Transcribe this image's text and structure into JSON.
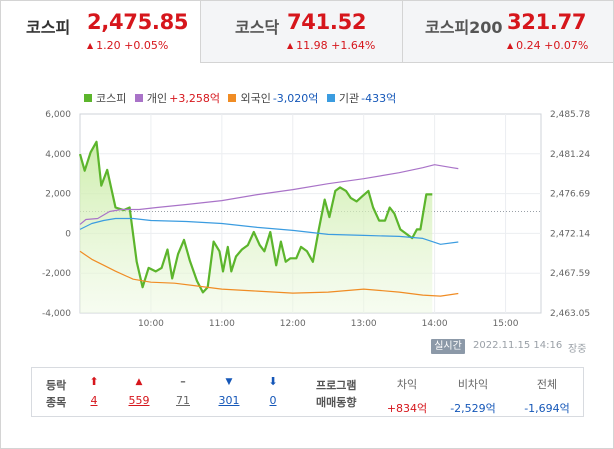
{
  "tabs": [
    {
      "name": "코스피",
      "price": "2,475.85",
      "change": "1.20 +0.05%",
      "active": true
    },
    {
      "name": "코스닥",
      "price": "741.52",
      "change": "11.98 +1.64%",
      "active": false
    },
    {
      "name": "코스피200",
      "price": "321.77",
      "change": "0.24 +0.07%",
      "active": false
    }
  ],
  "legend": [
    {
      "name": "코스피",
      "value": "",
      "color": "#5cb52c"
    },
    {
      "name": "개인",
      "value": "+3,258억",
      "color": "#a973c8",
      "value_color": "#d6161c"
    },
    {
      "name": "외국인",
      "value": "-3,020억",
      "color": "#f08c24",
      "value_color": "#1557b8"
    },
    {
      "name": "기관",
      "value": "-433억",
      "color": "#3b9ce0",
      "value_color": "#1557b8"
    }
  ],
  "chart_data": {
    "type": "line",
    "x_axis": {
      "ticks": [
        "10:00",
        "11:00",
        "12:00",
        "13:00",
        "14:00",
        "15:00"
      ],
      "range": [
        "09:00",
        "15:30"
      ]
    },
    "y_left": {
      "ticks": [
        "6,000",
        "4,000",
        "2,000",
        "0",
        "-2,000",
        "-4,000"
      ],
      "range": [
        -4000,
        6000
      ],
      "label": ""
    },
    "y_right": {
      "ticks": [
        "2,485.78",
        "2,481.24",
        "2,476.69",
        "2,472.14",
        "2,467.59",
        "2,463.05"
      ],
      "range": [
        2463.05,
        2485.78
      ]
    },
    "reference_line": {
      "axis": "right",
      "value": 2474.65,
      "style": "dotted"
    },
    "grid": true,
    "series": [
      {
        "name": "코스피",
        "axis": "right",
        "color": "#5cb52c",
        "fill": true,
        "points": [
          [
            "09:00",
            2481.2
          ],
          [
            "09:04",
            2479.3
          ],
          [
            "09:09",
            2481.4
          ],
          [
            "09:14",
            2482.6
          ],
          [
            "09:18",
            2477.6
          ],
          [
            "09:23",
            2479.4
          ],
          [
            "09:30",
            2475.1
          ],
          [
            "09:37",
            2474.8
          ],
          [
            "09:42",
            2475.1
          ],
          [
            "09:48",
            2468.9
          ],
          [
            "09:53",
            2466.0
          ],
          [
            "09:58",
            2468.2
          ],
          [
            "10:04",
            2467.8
          ],
          [
            "10:09",
            2468.2
          ],
          [
            "10:14",
            2470.3
          ],
          [
            "10:18",
            2467.0
          ],
          [
            "10:23",
            2469.8
          ],
          [
            "10:28",
            2471.4
          ],
          [
            "10:33",
            2469.0
          ],
          [
            "10:39",
            2466.7
          ],
          [
            "10:44",
            2465.4
          ],
          [
            "10:48",
            2466.0
          ],
          [
            "10:53",
            2471.2
          ],
          [
            "10:58",
            2470.1
          ],
          [
            "11:01",
            2467.8
          ],
          [
            "11:05",
            2470.6
          ],
          [
            "11:08",
            2467.8
          ],
          [
            "11:12",
            2469.5
          ],
          [
            "11:17",
            2470.3
          ],
          [
            "11:22",
            2470.8
          ],
          [
            "11:27",
            2472.3
          ],
          [
            "11:32",
            2470.8
          ],
          [
            "11:36",
            2470.1
          ],
          [
            "11:41",
            2472.3
          ],
          [
            "11:46",
            2468.5
          ],
          [
            "11:50",
            2471.2
          ],
          [
            "11:54",
            2468.9
          ],
          [
            "11:58",
            2469.3
          ],
          [
            "12:03",
            2469.3
          ],
          [
            "12:07",
            2470.6
          ],
          [
            "12:12",
            2470.1
          ],
          [
            "12:17",
            2468.9
          ],
          [
            "12:22",
            2472.6
          ],
          [
            "12:27",
            2476.0
          ],
          [
            "12:31",
            2474.0
          ],
          [
            "12:36",
            2477.0
          ],
          [
            "12:40",
            2477.4
          ],
          [
            "12:45",
            2477.0
          ],
          [
            "12:49",
            2476.2
          ],
          [
            "12:54",
            2475.8
          ],
          [
            "12:59",
            2476.4
          ],
          [
            "13:04",
            2477.0
          ],
          [
            "13:08",
            2475.1
          ],
          [
            "13:13",
            2473.6
          ],
          [
            "13:18",
            2473.6
          ],
          [
            "13:22",
            2475.1
          ],
          [
            "13:26",
            2474.4
          ],
          [
            "13:31",
            2472.6
          ],
          [
            "13:36",
            2472.1
          ],
          [
            "13:41",
            2471.6
          ],
          [
            "13:45",
            2472.6
          ],
          [
            "13:48",
            2472.6
          ],
          [
            "13:53",
            2476.6
          ],
          [
            "13:58",
            2476.6
          ]
        ]
      },
      {
        "name": "개인",
        "axis": "left",
        "color": "#a973c8",
        "fill": false,
        "points": [
          [
            "09:00",
            450
          ],
          [
            "09:05",
            700
          ],
          [
            "09:15",
            750
          ],
          [
            "09:25",
            1100
          ],
          [
            "09:35",
            1200
          ],
          [
            "09:50",
            1200
          ],
          [
            "10:05",
            1300
          ],
          [
            "10:30",
            1450
          ],
          [
            "11:00",
            1650
          ],
          [
            "11:30",
            1950
          ],
          [
            "12:00",
            2200
          ],
          [
            "12:30",
            2500
          ],
          [
            "13:00",
            2750
          ],
          [
            "13:30",
            3050
          ],
          [
            "13:50",
            3300
          ],
          [
            "14:00",
            3450
          ],
          [
            "14:15",
            3300
          ],
          [
            "14:20",
            3258
          ]
        ]
      },
      {
        "name": "외국인",
        "axis": "left",
        "color": "#f08c24",
        "fill": false,
        "points": [
          [
            "09:00",
            -900
          ],
          [
            "09:10",
            -1300
          ],
          [
            "09:20",
            -1600
          ],
          [
            "09:30",
            -1900
          ],
          [
            "09:45",
            -2300
          ],
          [
            "10:00",
            -2450
          ],
          [
            "10:20",
            -2500
          ],
          [
            "10:40",
            -2650
          ],
          [
            "11:00",
            -2800
          ],
          [
            "11:30",
            -2900
          ],
          [
            "12:00",
            -3000
          ],
          [
            "12:30",
            -2950
          ],
          [
            "13:00",
            -2800
          ],
          [
            "13:30",
            -2950
          ],
          [
            "13:50",
            -3100
          ],
          [
            "14:05",
            -3150
          ],
          [
            "14:20",
            -3020
          ]
        ]
      },
      {
        "name": "기관",
        "axis": "left",
        "color": "#3b9ce0",
        "fill": false,
        "points": [
          [
            "09:00",
            200
          ],
          [
            "09:10",
            500
          ],
          [
            "09:20",
            650
          ],
          [
            "09:30",
            750
          ],
          [
            "09:45",
            750
          ],
          [
            "10:00",
            650
          ],
          [
            "10:30",
            600
          ],
          [
            "11:00",
            500
          ],
          [
            "11:30",
            300
          ],
          [
            "12:00",
            150
          ],
          [
            "12:30",
            -50
          ],
          [
            "13:00",
            -100
          ],
          [
            "13:30",
            -150
          ],
          [
            "13:50",
            -250
          ],
          [
            "14:05",
            -550
          ],
          [
            "14:20",
            -433
          ]
        ]
      }
    ]
  },
  "realtime": {
    "badge": "실시간",
    "timestamp": "2022.11.15 14:16",
    "status": "장중"
  },
  "breadth": {
    "row_label_1": "등락",
    "row_label_2": "종목",
    "items": [
      {
        "icon": "⬆",
        "count": "4",
        "kind": "upper-limit",
        "color": "red"
      },
      {
        "icon": "▲",
        "count": "559",
        "kind": "rise",
        "color": "red"
      },
      {
        "icon": "–",
        "count": "71",
        "kind": "flat",
        "color": "gray"
      },
      {
        "icon": "▼",
        "count": "301",
        "kind": "fall",
        "color": "blue"
      },
      {
        "icon": "⬇",
        "count": "0",
        "kind": "lower-limit",
        "color": "blue"
      }
    ]
  },
  "program": {
    "label_1": "프로그램",
    "label_2": "매매동향",
    "cols": [
      {
        "header": "차익",
        "value": "+834억",
        "color": "red"
      },
      {
        "header": "비차익",
        "value": "-2,529억",
        "color": "blue"
      },
      {
        "header": "전체",
        "value": "-1,694억",
        "color": "blue"
      }
    ]
  }
}
